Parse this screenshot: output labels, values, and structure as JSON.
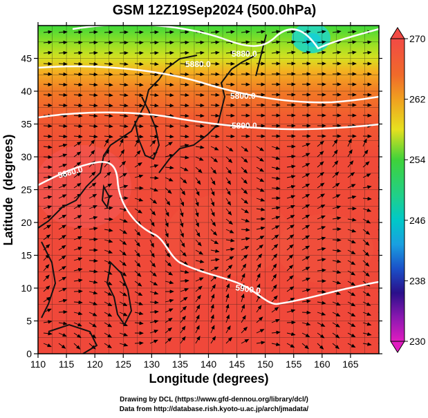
{
  "title": "GSM 12Z19Sep2024 (500.0hPa)",
  "xlabel": "Longitude (degrees)",
  "ylabel": "Latitude  (degrees)",
  "credits": {
    "line1": "Drawing by DCL (https://www.gfd-dennou.org/library/dcl/)",
    "line2": "Data from http://database.rish.kyoto-u.ac.jp/arch/jmadata/"
  },
  "map": {
    "lon_range": [
      110,
      170
    ],
    "lat_range": [
      0,
      50
    ],
    "x_ticks": [
      "110",
      "115",
      "120",
      "125",
      "130",
      "135",
      "140",
      "145",
      "150",
      "155",
      "160",
      "165"
    ],
    "y_ticks": [
      "0",
      "5",
      "10",
      "15",
      "20",
      "25",
      "30",
      "35",
      "40",
      "45"
    ],
    "contour_labels": [
      "5880.0",
      "5800.0",
      "5890.0",
      "5880.0",
      "5900.0",
      "5880.0"
    ]
  },
  "colorbar": {
    "tick_labels": [
      "270",
      "262",
      "254",
      "246",
      "238",
      "230"
    ],
    "colors": {
      "top": "#f24a45",
      "orange": "#f08a1e",
      "yellow": "#e6e01f",
      "green": "#3fd23a",
      "cyan": "#00c8c8",
      "blue": "#1a6fd8",
      "navy": "#2a0f8a",
      "magenta": "#e01cc0"
    }
  }
}
